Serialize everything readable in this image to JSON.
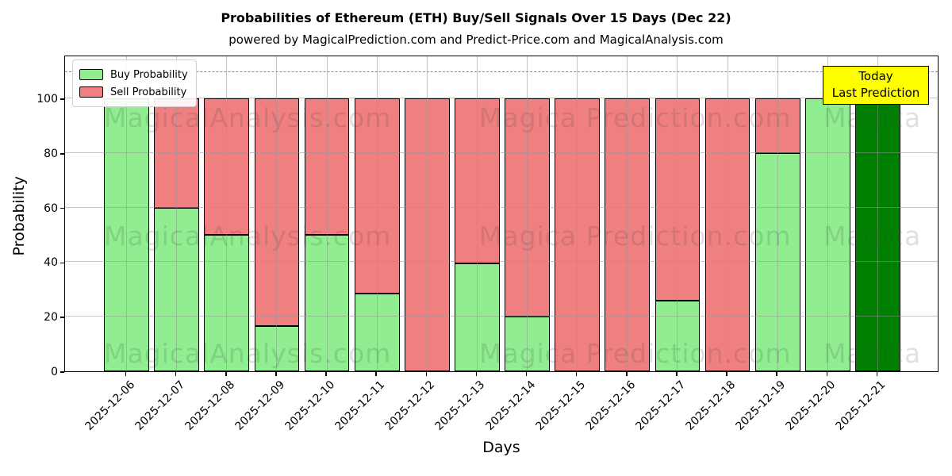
{
  "header": {
    "title": "Probabilities of Ethereum (ETH) Buy/Sell Signals Over 15 Days (Dec 22)",
    "subtitle": "powered by MagicalPrediction.com and Predict-Price.com and MagicalAnalysis.com"
  },
  "chart_data": {
    "type": "bar",
    "stacked": true,
    "title": "Probabilities of Ethereum (ETH) Buy/Sell Signals Over 15 Days (Dec 22)",
    "xlabel": "Days",
    "ylabel": "Probability",
    "categories": [
      "2025-12-06",
      "2025-12-07",
      "2025-12-08",
      "2025-12-09",
      "2025-12-10",
      "2025-12-11",
      "2025-12-12",
      "2025-12-13",
      "2025-12-14",
      "2025-12-15",
      "2025-12-16",
      "2025-12-17",
      "2025-12-18",
      "2025-12-19",
      "2025-12-20",
      "2025-12-21"
    ],
    "series": [
      {
        "name": "Buy Probability",
        "color": "#90ee90",
        "values": [
          100,
          60,
          50,
          16.5,
          50,
          28.5,
          0,
          39.5,
          20,
          0,
          0,
          26,
          0,
          80,
          100,
          100
        ]
      },
      {
        "name": "Sell Probability",
        "color": "#f08080",
        "values": [
          0,
          40,
          50,
          83.5,
          50,
          71.5,
          100,
          60.5,
          80,
          100,
          100,
          74,
          100,
          20,
          0,
          0
        ]
      }
    ],
    "today_bar": {
      "index": 15,
      "color": "#008000"
    },
    "ylim": [
      0,
      116
    ],
    "yticks": [
      0,
      20,
      40,
      60,
      80,
      100
    ],
    "dashed_line_y": 110,
    "grid": true,
    "legend_position": "upper left",
    "bar_edge_color": "#000000"
  },
  "legend": {
    "items": [
      {
        "label": "Buy Probability",
        "color": "#90ee90"
      },
      {
        "label": "Sell Probability",
        "color": "#f08080"
      }
    ]
  },
  "annotation": {
    "lines": [
      "Today",
      "Last Prediction"
    ],
    "bg_color": "#ffff00"
  },
  "watermarks": {
    "texts": [
      "MagicalAnalysis.com",
      "Magica Prediction.com",
      "Magica"
    ]
  }
}
